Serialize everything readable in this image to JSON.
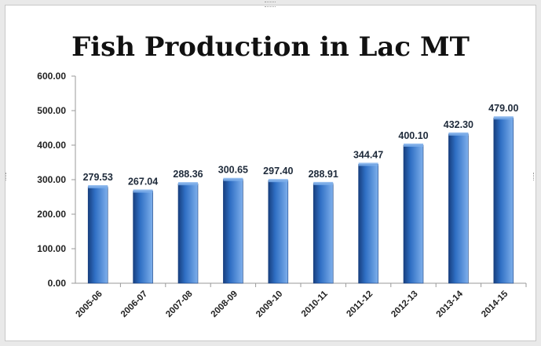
{
  "chart_data": {
    "type": "bar",
    "title": "Fish Production in Lac MT",
    "categories": [
      "2005-06",
      "2006-07",
      "2007-08",
      "2008-09",
      "2009-10",
      "2010-11",
      "2011-12",
      "2012-13",
      "2013-14",
      "2014-15"
    ],
    "values": [
      279.53,
      267.04,
      288.36,
      300.65,
      297.4,
      288.91,
      344.47,
      400.1,
      432.3,
      479.0
    ],
    "value_labels": [
      "279.53",
      "267.04",
      "288.36",
      "300.65",
      "297.40",
      "288.91",
      "344.47",
      "400.10",
      "432.30",
      "479.00"
    ],
    "y_tick_labels": [
      "0.00",
      "100.00",
      "200.00",
      "300.00",
      "400.00",
      "500.00",
      "600.00"
    ],
    "ylim": [
      0,
      600
    ],
    "grid": false,
    "bar_color": "#2f6fc4",
    "bar_color_dark": "#173f7f",
    "bar_color_light": "#7fb0ec"
  }
}
